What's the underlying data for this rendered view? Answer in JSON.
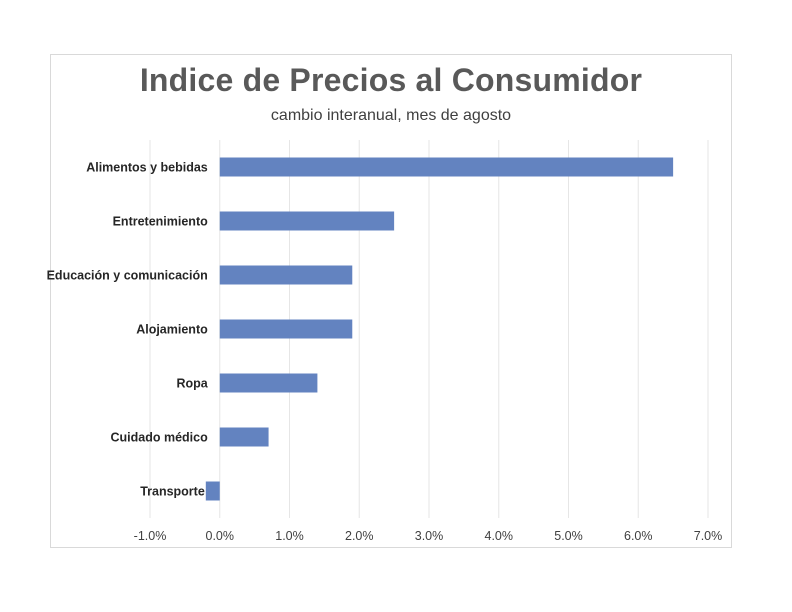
{
  "chart_data": {
    "type": "bar",
    "orientation": "horizontal",
    "title": "Indice de Precios al Consumidor",
    "subtitle": "cambio interanual, mes de agosto",
    "categories": [
      "Alimentos y bebidas",
      "Entretenimiento",
      "Educación y comunicación",
      "Alojamiento",
      "Ropa",
      "Cuidado médico",
      "Transporte"
    ],
    "values": [
      6.5,
      2.5,
      1.9,
      1.9,
      1.4,
      0.7,
      -0.2
    ],
    "unit": "%",
    "xlim": [
      -1.0,
      7.0
    ],
    "xticks": [
      "-1.0%",
      "0.0%",
      "1.0%",
      "2.0%",
      "3.0%",
      "4.0%",
      "5.0%",
      "6.0%",
      "7.0%"
    ],
    "grid": "vertical",
    "bar_color": "#6383c0",
    "gridline_color": "#e6e6e6"
  }
}
